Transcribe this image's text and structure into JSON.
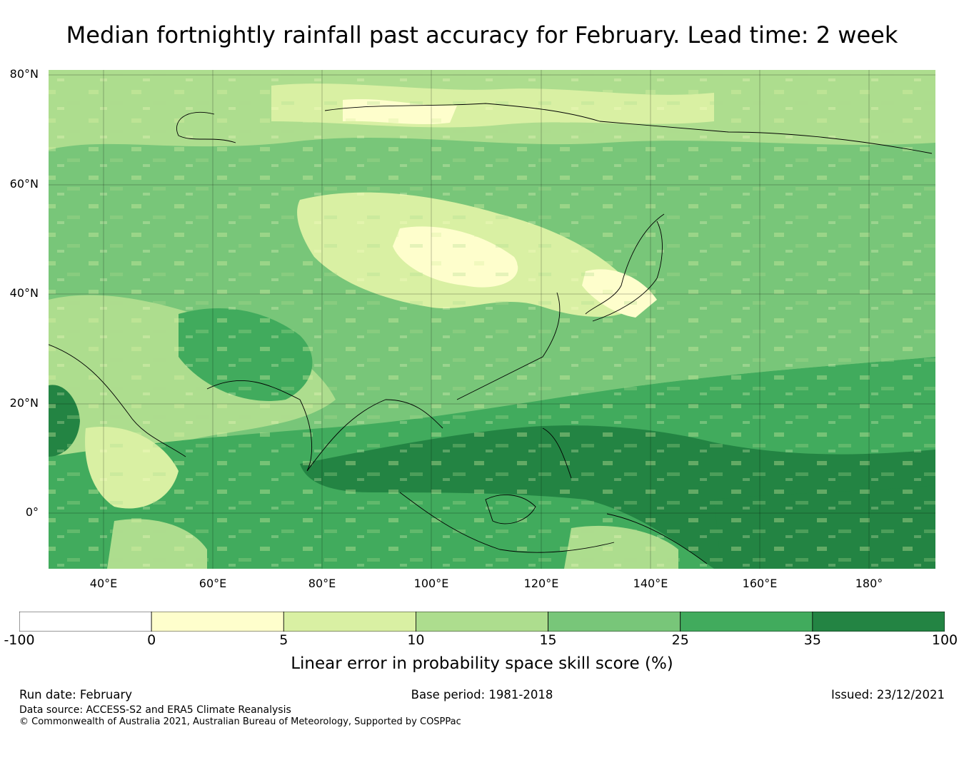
{
  "title": "Median fortnightly rainfall past accuracy for February. Lead time: 2 week",
  "map": {
    "lat_labels": [
      "80°N",
      "60°N",
      "40°N",
      "20°N",
      "0°"
    ],
    "lon_labels": [
      "40°E",
      "60°E",
      "80°E",
      "100°E",
      "120°E",
      "140°E",
      "160°E",
      "180°"
    ],
    "lat_range": [
      -10,
      80
    ],
    "lon_range": [
      30,
      192
    ],
    "gridlines": true
  },
  "colorbar": {
    "ticks": [
      "-100",
      "0",
      "5",
      "10",
      "15",
      "25",
      "35",
      "100"
    ],
    "colors": [
      "#ffffff",
      "#fefecc",
      "#d9f0a3",
      "#addd8e",
      "#78c679",
      "#41ab5d",
      "#238443"
    ],
    "label": "Linear error in probability space skill score (%)"
  },
  "footer": {
    "run_date": "Run date: February",
    "base_period": "Base period: 1981-2018",
    "issued": "Issued: 23/12/2021",
    "data_source": "Data source: ACCESS-S2 and ERA5 Climate Reanalysis",
    "copyright": "© Commonwealth of Australia 2021, Australian Bureau of Meteorology, Supported by COSPPac"
  }
}
